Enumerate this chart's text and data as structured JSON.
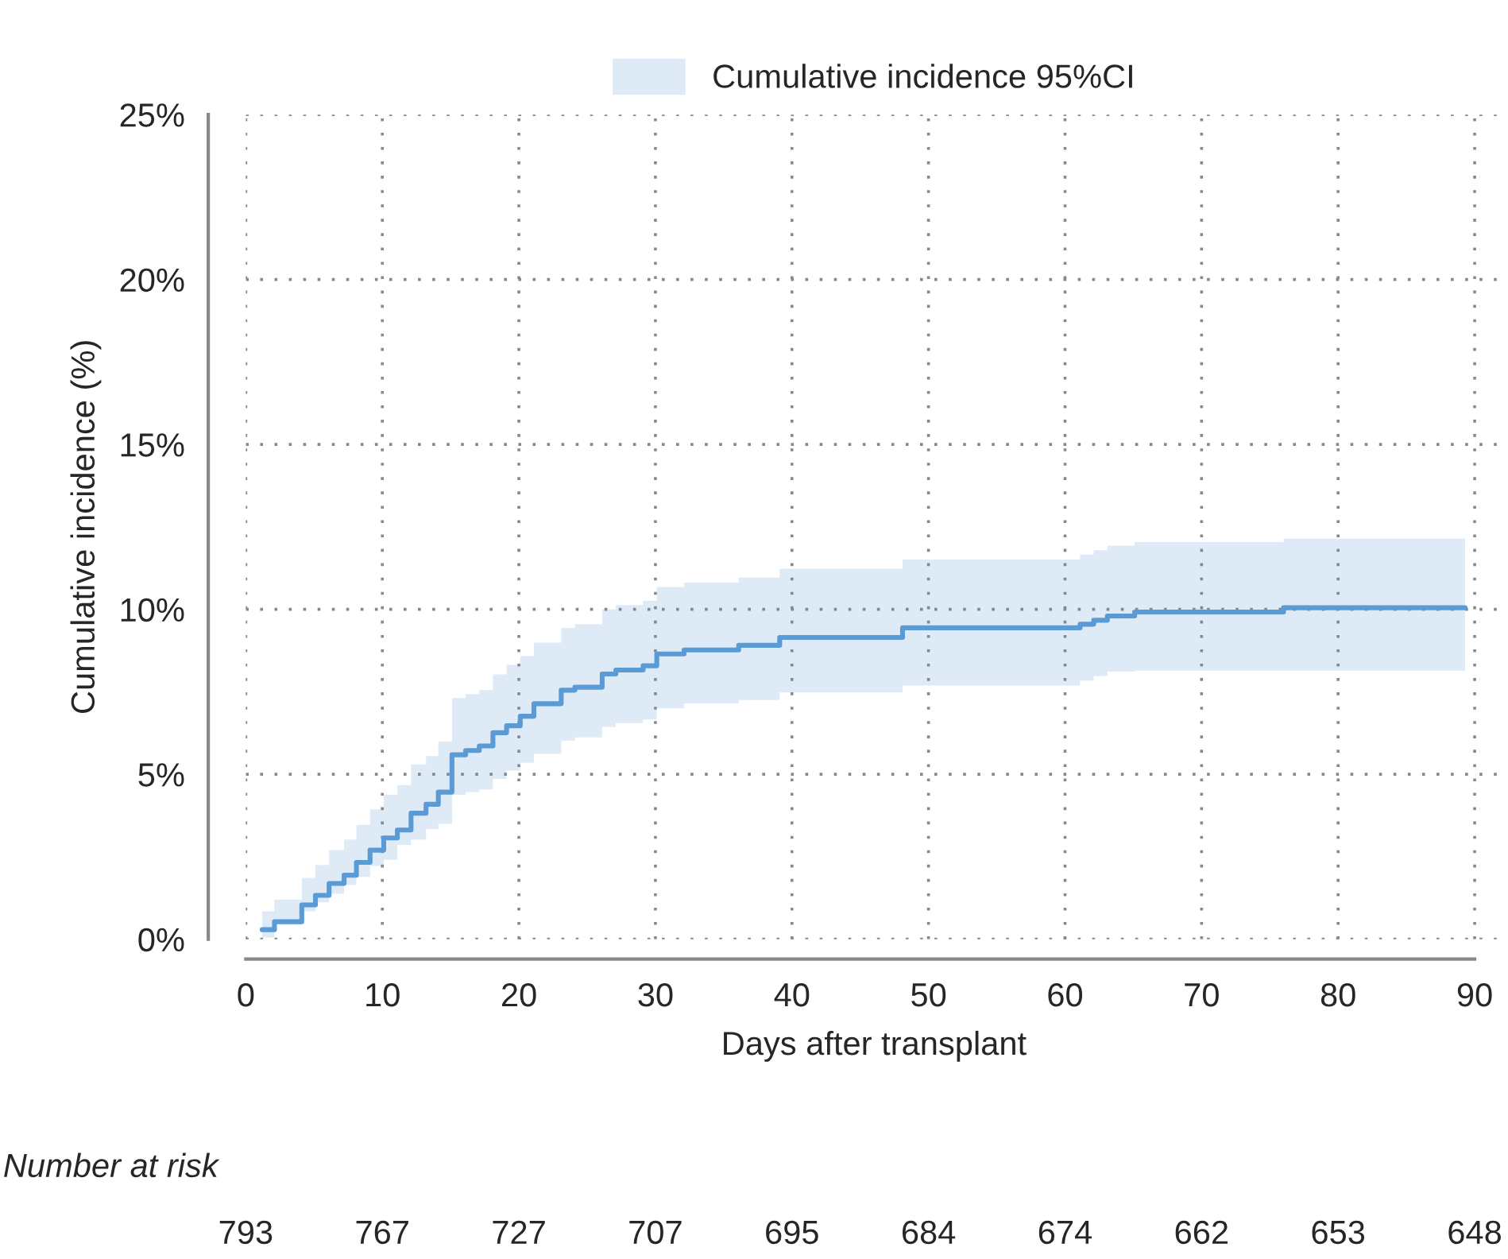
{
  "chart_data": {
    "type": "step",
    "xlabel": "Days after transplant",
    "ylabel": "Cumulative incidence (%)",
    "xlim": [
      0,
      92
    ],
    "xticks": [
      0,
      10,
      20,
      30,
      40,
      50,
      60,
      70,
      80,
      90
    ],
    "ylim": [
      0,
      25
    ],
    "yticks": [
      {
        "value": 0,
        "label": "0%"
      },
      {
        "value": 5,
        "label": "5%"
      },
      {
        "value": 10,
        "label": "10%"
      },
      {
        "value": 15,
        "label": "15%"
      },
      {
        "value": 20,
        "label": "20%"
      },
      {
        "value": 25,
        "label": "25%"
      }
    ],
    "grid": true,
    "legend": "top",
    "line_style": "solid",
    "series": [
      {
        "name": "Cumulative incidence 95%CI",
        "color": "#5b9bd5",
        "x": [
          1.2,
          2.1,
          4.1,
          5.1,
          6.1,
          7.2,
          8.1,
          9.1,
          10.1,
          11.1,
          12.1,
          13.2,
          14.1,
          15.1,
          16.1,
          17.1,
          18.1,
          19.1,
          20.1,
          21.1,
          23.1,
          24.1,
          26.1,
          27.1,
          29.1,
          30.1,
          32.1,
          36.1,
          39.1,
          48.1,
          61.1,
          62.1,
          63.1,
          65.1,
          76.0,
          89.3
        ],
        "values": [
          0.29,
          0.53,
          1.04,
          1.33,
          1.69,
          1.94,
          2.33,
          2.7,
          3.07,
          3.31,
          3.82,
          4.09,
          4.46,
          5.59,
          5.72,
          5.86,
          6.26,
          6.47,
          6.76,
          7.14,
          7.55,
          7.64,
          8.04,
          8.16,
          8.29,
          8.65,
          8.77,
          8.91,
          9.15,
          9.44,
          9.55,
          9.67,
          9.8,
          9.92,
          10.05,
          10.05
        ],
        "upper": [
          0.85,
          1.2,
          1.86,
          2.25,
          2.7,
          3.02,
          3.47,
          3.94,
          4.38,
          4.67,
          5.3,
          5.55,
          5.99,
          7.31,
          7.43,
          7.55,
          8.03,
          8.32,
          8.59,
          8.99,
          9.44,
          9.55,
          10.0,
          10.13,
          10.26,
          10.68,
          10.81,
          10.96,
          11.23,
          11.51,
          11.66,
          11.79,
          11.93,
          12.04,
          12.14,
          12.14
        ],
        "lower": [
          0.05,
          0.45,
          0.85,
          1.12,
          1.38,
          1.65,
          1.89,
          2.22,
          2.41,
          2.86,
          3.02,
          3.34,
          3.5,
          4.38,
          4.46,
          4.54,
          4.86,
          5.11,
          5.35,
          5.62,
          6.02,
          6.12,
          6.44,
          6.55,
          6.66,
          7.0,
          7.15,
          7.25,
          7.48,
          7.69,
          7.84,
          7.98,
          8.11,
          8.14,
          8.14,
          8.14
        ]
      }
    ],
    "annotations": [
      "Number at risk",
      "793",
      "767",
      "727",
      "707",
      "695",
      "684",
      "674",
      "662",
      "653",
      "648"
    ]
  }
}
